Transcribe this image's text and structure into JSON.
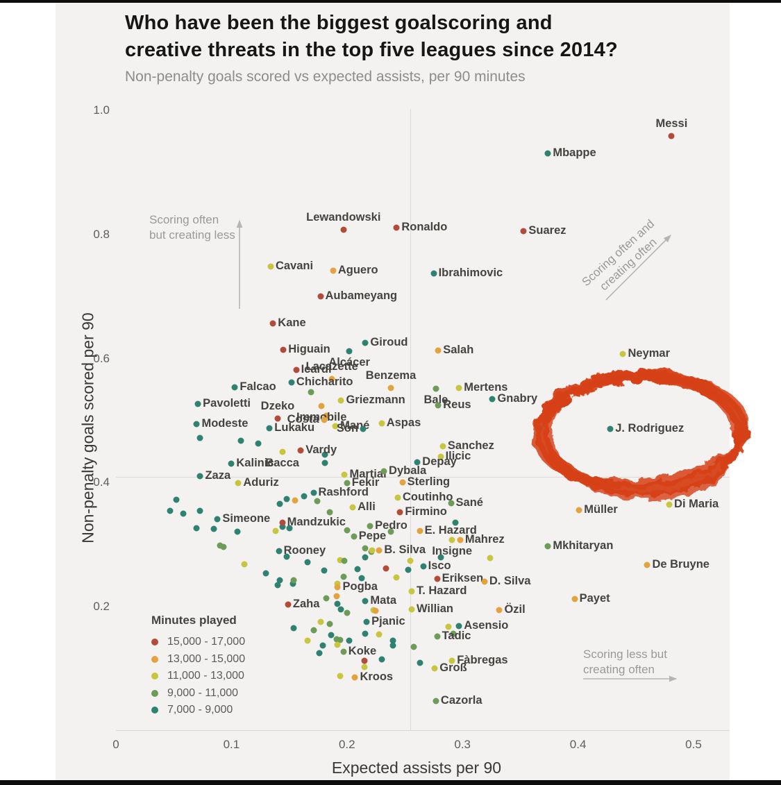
{
  "header": {
    "title_line1": "Who have been the biggest goalscoring and",
    "title_line2": "creative threats in the top five leagues since 2014?",
    "subtitle": "Non-penalty goals scored vs expected assists, per 90 minutes"
  },
  "chart_data": {
    "type": "scatter",
    "title": "Who have been the biggest goalscoring and creative threats in the top five leagues since 2014?",
    "subtitle": "Non-penalty goals scored vs expected assists, per 90 minutes",
    "xlabel": "Expected assists per 90",
    "ylabel": "Non-penalty goals scored per 90",
    "xlim": [
      0,
      0.5
    ],
    "ylim": [
      0,
      1.0
    ],
    "x_ticks": [
      "0",
      "0.1",
      "0.2",
      "0.3",
      "0.4",
      "0.5"
    ],
    "y_ticks": [
      "0.2",
      "0.4",
      "0.6",
      "0.8",
      "1.0"
    ],
    "grid": "quadrant-cross",
    "quadrant_lines": {
      "x": 0.255,
      "y": 0.408
    },
    "legend_position": "bottom-left",
    "legend": {
      "title": "Minutes played",
      "items": [
        {
          "label": "15,000 - 17,000",
          "color": "#b34b3b",
          "key": "red"
        },
        {
          "label": "13,000 - 15,000",
          "color": "#e3a33e",
          "key": "orange"
        },
        {
          "label": "11,000 - 13,000",
          "color": "#c8c63f",
          "key": "yellow"
        },
        {
          "label": "9,000  - 11,000",
          "color": "#6d9b58",
          "key": "olive"
        },
        {
          "label": "7,000   - 9,000",
          "color": "#2f8272",
          "key": "teal"
        }
      ]
    },
    "annotations": [
      {
        "id": "top-left",
        "line1": "Scoring often",
        "line2": "but creating less",
        "arrow": "up"
      },
      {
        "id": "top-right",
        "line1": "Scoring often and",
        "line2": "creating often",
        "arrow": "diagonal-up-right"
      },
      {
        "id": "bottom-right",
        "line1": "Scoring less but",
        "line2": "creating often",
        "arrow": "right"
      }
    ],
    "highlight": {
      "player": "J. Rodriguez",
      "shape": "hand-drawn-scribble-ellipse",
      "color": "#d64018",
      "cx": 0.455,
      "cy": 0.48,
      "rx": 0.087,
      "ry": 0.094
    },
    "points": [
      {
        "n": "Messi",
        "x": 0.481,
        "y": 0.957,
        "c": "red",
        "s": "above"
      },
      {
        "n": "Mbappe",
        "x": 0.374,
        "y": 0.93,
        "c": "teal"
      },
      {
        "n": "Lewandowski",
        "x": 0.197,
        "y": 0.806,
        "c": "red",
        "s": "above"
      },
      {
        "n": "Ronaldo",
        "x": 0.243,
        "y": 0.81,
        "c": "red"
      },
      {
        "n": "Suarez",
        "x": 0.353,
        "y": 0.804,
        "c": "red"
      },
      {
        "n": "Cavani",
        "x": 0.134,
        "y": 0.747,
        "c": "yellow"
      },
      {
        "n": "Aguero",
        "x": 0.188,
        "y": 0.74,
        "c": "orange"
      },
      {
        "n": "Ibrahimovic",
        "x": 0.275,
        "y": 0.736,
        "c": "teal"
      },
      {
        "n": "Aubameyang",
        "x": 0.177,
        "y": 0.699,
        "c": "red"
      },
      {
        "n": "Kane",
        "x": 0.136,
        "y": 0.656,
        "c": "red"
      },
      {
        "n": "Higuain",
        "x": 0.145,
        "y": 0.613,
        "c": "red"
      },
      {
        "n": "Giroud",
        "x": 0.216,
        "y": 0.624,
        "c": "teal"
      },
      {
        "n": "Alcácer",
        "x": 0.202,
        "y": 0.611,
        "c": "teal",
        "s": "below"
      },
      {
        "n": "Salah",
        "x": 0.279,
        "y": 0.612,
        "c": "orange"
      },
      {
        "n": "Icardi",
        "x": 0.156,
        "y": 0.58,
        "c": "red"
      },
      {
        "n": "Lacazette",
        "x": 0.187,
        "y": 0.566,
        "c": "orange",
        "s": "above"
      },
      {
        "n": "Chicharito",
        "x": 0.152,
        "y": 0.56,
        "c": "teal"
      },
      {
        "n": "Falcao",
        "x": 0.103,
        "y": 0.553,
        "c": "teal"
      },
      {
        "n": "Benzema",
        "x": 0.238,
        "y": 0.551,
        "c": "orange",
        "s": "above"
      },
      {
        "n": "Bale",
        "x": 0.277,
        "y": 0.55,
        "c": "olive",
        "s": "below"
      },
      {
        "n": "Mertens",
        "x": 0.297,
        "y": 0.551,
        "c": "yellow"
      },
      {
        "n": "Pavoletti",
        "x": 0.071,
        "y": 0.526,
        "c": "teal"
      },
      {
        "n": "Griezmann",
        "x": 0.195,
        "y": 0.531,
        "c": "yellow"
      },
      {
        "n": "Reus",
        "x": 0.279,
        "y": 0.524,
        "c": "olive"
      },
      {
        "n": "Gnabry",
        "x": 0.326,
        "y": 0.534,
        "c": "teal"
      },
      {
        "n": "Modeste",
        "x": 0.07,
        "y": 0.493,
        "c": "teal"
      },
      {
        "n": "Dzeko",
        "x": 0.14,
        "y": 0.502,
        "c": "red",
        "s": "above"
      },
      {
        "n": "Immobile",
        "x": 0.178,
        "y": 0.522,
        "c": "orange",
        "s": "below"
      },
      {
        "n": "Costa",
        "x": 0.18,
        "y": 0.5,
        "c": "orange",
        "s": "left"
      },
      {
        "n": "Mané",
        "x": 0.19,
        "y": 0.49,
        "c": "yellow"
      },
      {
        "n": "Son",
        "x": 0.214,
        "y": 0.486,
        "c": "teal",
        "s": "left"
      },
      {
        "n": "Lukaku",
        "x": 0.133,
        "y": 0.487,
        "c": "teal"
      },
      {
        "n": "Aspas",
        "x": 0.23,
        "y": 0.494,
        "c": "yellow"
      },
      {
        "n": "Vardy",
        "x": 0.16,
        "y": 0.451,
        "c": "red"
      },
      {
        "n": "Bacca",
        "x": 0.144,
        "y": 0.448,
        "c": "yellow",
        "s": "below"
      },
      {
        "n": "Kalinic",
        "x": 0.1,
        "y": 0.429,
        "c": "teal"
      },
      {
        "n": "Sanchez",
        "x": 0.283,
        "y": 0.458,
        "c": "yellow"
      },
      {
        "n": "Ilicic",
        "x": 0.281,
        "y": 0.441,
        "c": "yellow"
      },
      {
        "n": "Depay",
        "x": 0.261,
        "y": 0.432,
        "c": "teal"
      },
      {
        "n": "Zaza",
        "x": 0.073,
        "y": 0.409,
        "c": "teal"
      },
      {
        "n": "Aduriz",
        "x": 0.106,
        "y": 0.398,
        "c": "yellow"
      },
      {
        "n": "Martial",
        "x": 0.198,
        "y": 0.412,
        "c": "yellow"
      },
      {
        "n": "Dybala",
        "x": 0.232,
        "y": 0.417,
        "c": "olive"
      },
      {
        "n": "Fekir",
        "x": 0.2,
        "y": 0.398,
        "c": "olive"
      },
      {
        "n": "Sterling",
        "x": 0.248,
        "y": 0.399,
        "c": "orange"
      },
      {
        "n": "Rashford",
        "x": 0.171,
        "y": 0.382,
        "c": "teal"
      },
      {
        "n": "Coutinho",
        "x": 0.244,
        "y": 0.375,
        "c": "yellow"
      },
      {
        "n": "Sané",
        "x": 0.29,
        "y": 0.366,
        "c": "olive"
      },
      {
        "n": "Alli",
        "x": 0.205,
        "y": 0.359,
        "c": "yellow"
      },
      {
        "n": "Firmino",
        "x": 0.246,
        "y": 0.351,
        "c": "red"
      },
      {
        "n": "Simeone",
        "x": 0.088,
        "y": 0.34,
        "c": "teal"
      },
      {
        "n": "Mandzukic",
        "x": 0.144,
        "y": 0.335,
        "c": "red"
      },
      {
        "n": "Pedro",
        "x": 0.22,
        "y": 0.329,
        "c": "olive"
      },
      {
        "n": "E. Hazard",
        "x": 0.263,
        "y": 0.321,
        "c": "orange"
      },
      {
        "n": "Pepe",
        "x": 0.206,
        "y": 0.312,
        "c": "olive"
      },
      {
        "n": "Mahrez",
        "x": 0.298,
        "y": 0.306,
        "c": "orange"
      },
      {
        "n": "Insigne",
        "x": 0.291,
        "y": 0.306,
        "c": "yellow",
        "s": "below"
      },
      {
        "n": "Rooney",
        "x": 0.141,
        "y": 0.289,
        "c": "teal"
      },
      {
        "n": "B. Silva",
        "x": 0.228,
        "y": 0.29,
        "c": "orange"
      },
      {
        "n": "Mkhitaryan",
        "x": 0.374,
        "y": 0.296,
        "c": "olive"
      },
      {
        "n": "Müller",
        "x": 0.401,
        "y": 0.355,
        "c": "orange"
      },
      {
        "n": "Di Maria",
        "x": 0.479,
        "y": 0.363,
        "c": "yellow"
      },
      {
        "n": "J. Rodriguez",
        "x": 0.428,
        "y": 0.486,
        "c": "teal"
      },
      {
        "n": "Neymar",
        "x": 0.439,
        "y": 0.606,
        "c": "yellow"
      },
      {
        "n": "Isco",
        "x": 0.266,
        "y": 0.264,
        "c": "teal"
      },
      {
        "n": "De Bruyne",
        "x": 0.46,
        "y": 0.266,
        "c": "orange"
      },
      {
        "n": "Eriksen",
        "x": 0.278,
        "y": 0.244,
        "c": "red"
      },
      {
        "n": "D. Silva",
        "x": 0.319,
        "y": 0.239,
        "c": "orange"
      },
      {
        "n": "Pogba",
        "x": 0.192,
        "y": 0.23,
        "c": "orange"
      },
      {
        "n": "Mata",
        "x": 0.216,
        "y": 0.208,
        "c": "teal"
      },
      {
        "n": "T. Hazard",
        "x": 0.256,
        "y": 0.224,
        "c": "yellow"
      },
      {
        "n": "Payet",
        "x": 0.397,
        "y": 0.211,
        "c": "orange"
      },
      {
        "n": "Zaha",
        "x": 0.149,
        "y": 0.203,
        "c": "red"
      },
      {
        "n": "Willian",
        "x": 0.256,
        "y": 0.195,
        "c": "yellow"
      },
      {
        "n": "Özil",
        "x": 0.332,
        "y": 0.194,
        "c": "orange"
      },
      {
        "n": "Pjanic",
        "x": 0.217,
        "y": 0.174,
        "c": "teal"
      },
      {
        "n": "Asensio",
        "x": 0.297,
        "y": 0.168,
        "c": "teal"
      },
      {
        "n": "Tadic",
        "x": 0.278,
        "y": 0.151,
        "c": "olive"
      },
      {
        "n": "Koke",
        "x": 0.197,
        "y": 0.126,
        "c": "olive"
      },
      {
        "n": "Fàbregas",
        "x": 0.291,
        "y": 0.112,
        "c": "yellow"
      },
      {
        "n": "Groß",
        "x": 0.276,
        "y": 0.1,
        "c": "yellow"
      },
      {
        "n": "Kroos",
        "x": 0.207,
        "y": 0.085,
        "c": "orange"
      },
      {
        "n": "Cazorla",
        "x": 0.277,
        "y": 0.047,
        "c": "olive"
      }
    ],
    "unlabeled_points": [
      {
        "x": 0.169,
        "y": 0.545,
        "c": "olive"
      },
      {
        "x": 0.182,
        "y": 0.507,
        "c": "orange"
      },
      {
        "x": 0.073,
        "y": 0.471,
        "c": "teal"
      },
      {
        "x": 0.108,
        "y": 0.467,
        "c": "teal"
      },
      {
        "x": 0.123,
        "y": 0.462,
        "c": "teal"
      },
      {
        "x": 0.181,
        "y": 0.444,
        "c": "teal"
      },
      {
        "x": 0.181,
        "y": 0.431,
        "c": "teal"
      },
      {
        "x": 0.142,
        "y": 0.365,
        "c": "teal"
      },
      {
        "x": 0.148,
        "y": 0.372,
        "c": "teal"
      },
      {
        "x": 0.155,
        "y": 0.37,
        "c": "orange"
      },
      {
        "x": 0.163,
        "y": 0.377,
        "c": "teal"
      },
      {
        "x": 0.174,
        "y": 0.369,
        "c": "olive"
      },
      {
        "x": 0.185,
        "y": 0.351,
        "c": "olive"
      },
      {
        "x": 0.144,
        "y": 0.328,
        "c": "teal"
      },
      {
        "x": 0.15,
        "y": 0.326,
        "c": "teal"
      },
      {
        "x": 0.2,
        "y": 0.322,
        "c": "olive"
      },
      {
        "x": 0.238,
        "y": 0.32,
        "c": "olive"
      },
      {
        "x": 0.294,
        "y": 0.334,
        "c": "teal"
      },
      {
        "x": 0.216,
        "y": 0.293,
        "c": "olive"
      },
      {
        "x": 0.221,
        "y": 0.288,
        "c": "olive"
      },
      {
        "x": 0.216,
        "y": 0.278,
        "c": "teal"
      },
      {
        "x": 0.222,
        "y": 0.29,
        "c": "yellow"
      },
      {
        "x": 0.209,
        "y": 0.259,
        "c": "teal"
      },
      {
        "x": 0.234,
        "y": 0.261,
        "c": "red"
      },
      {
        "x": 0.253,
        "y": 0.258,
        "c": "teal"
      },
      {
        "x": 0.255,
        "y": 0.273,
        "c": "yellow"
      },
      {
        "x": 0.281,
        "y": 0.278,
        "c": "teal"
      },
      {
        "x": 0.324,
        "y": 0.277,
        "c": "yellow"
      },
      {
        "x": 0.213,
        "y": 0.245,
        "c": "teal"
      },
      {
        "x": 0.243,
        "y": 0.246,
        "c": "yellow"
      },
      {
        "x": 0.197,
        "y": 0.247,
        "c": "olive"
      },
      {
        "x": 0.166,
        "y": 0.271,
        "c": "teal"
      },
      {
        "x": 0.148,
        "y": 0.28,
        "c": "teal"
      },
      {
        "x": 0.194,
        "y": 0.274,
        "c": "yellow"
      },
      {
        "x": 0.198,
        "y": 0.273,
        "c": "olive"
      },
      {
        "x": 0.18,
        "y": 0.257,
        "c": "teal"
      },
      {
        "x": 0.142,
        "y": 0.242,
        "c": "teal"
      },
      {
        "x": 0.153,
        "y": 0.236,
        "c": "teal"
      },
      {
        "x": 0.192,
        "y": 0.236,
        "c": "yellow"
      },
      {
        "x": 0.191,
        "y": 0.216,
        "c": "orange"
      },
      {
        "x": 0.182,
        "y": 0.212,
        "c": "olive"
      },
      {
        "x": 0.192,
        "y": 0.204,
        "c": "teal"
      },
      {
        "x": 0.195,
        "y": 0.195,
        "c": "teal"
      },
      {
        "x": 0.2,
        "y": 0.189,
        "c": "olive"
      },
      {
        "x": 0.223,
        "y": 0.194,
        "c": "yellow"
      },
      {
        "x": 0.225,
        "y": 0.192,
        "c": "orange"
      },
      {
        "x": 0.202,
        "y": 0.144,
        "c": "teal"
      },
      {
        "x": 0.185,
        "y": 0.171,
        "c": "olive"
      },
      {
        "x": 0.177,
        "y": 0.175,
        "c": "yellow"
      },
      {
        "x": 0.154,
        "y": 0.164,
        "c": "teal"
      },
      {
        "x": 0.171,
        "y": 0.161,
        "c": "olive"
      },
      {
        "x": 0.186,
        "y": 0.153,
        "c": "teal"
      },
      {
        "x": 0.194,
        "y": 0.145,
        "c": "olive"
      },
      {
        "x": 0.216,
        "y": 0.155,
        "c": "teal"
      },
      {
        "x": 0.228,
        "y": 0.154,
        "c": "yellow"
      },
      {
        "x": 0.24,
        "y": 0.136,
        "c": "teal"
      },
      {
        "x": 0.166,
        "y": 0.144,
        "c": "yellow"
      },
      {
        "x": 0.258,
        "y": 0.134,
        "c": "olive"
      },
      {
        "x": 0.263,
        "y": 0.108,
        "c": "teal"
      },
      {
        "x": 0.288,
        "y": 0.167,
        "c": "yellow"
      },
      {
        "x": 0.292,
        "y": 0.156,
        "c": "olive"
      },
      {
        "x": 0.179,
        "y": 0.136,
        "c": "teal"
      },
      {
        "x": 0.191,
        "y": 0.147,
        "c": "olive"
      },
      {
        "x": 0.192,
        "y": 0.138,
        "c": "yellow"
      },
      {
        "x": 0.176,
        "y": 0.124,
        "c": "teal"
      },
      {
        "x": 0.23,
        "y": 0.114,
        "c": "teal"
      },
      {
        "x": 0.215,
        "y": 0.112,
        "c": "red"
      },
      {
        "x": 0.215,
        "y": 0.102,
        "c": "yellow"
      },
      {
        "x": 0.194,
        "y": 0.087,
        "c": "yellow"
      },
      {
        "x": 0.24,
        "y": 0.144,
        "c": "teal"
      },
      {
        "x": 0.052,
        "y": 0.371,
        "c": "teal"
      },
      {
        "x": 0.047,
        "y": 0.354,
        "c": "teal"
      },
      {
        "x": 0.058,
        "y": 0.349,
        "c": "teal"
      },
      {
        "x": 0.073,
        "y": 0.353,
        "c": "teal"
      },
      {
        "x": 0.07,
        "y": 0.325,
        "c": "teal"
      },
      {
        "x": 0.085,
        "y": 0.324,
        "c": "teal"
      },
      {
        "x": 0.105,
        "y": 0.32,
        "c": "teal"
      },
      {
        "x": 0.09,
        "y": 0.298,
        "c": "olive"
      },
      {
        "x": 0.093,
        "y": 0.295,
        "c": "olive"
      },
      {
        "x": 0.111,
        "y": 0.267,
        "c": "yellow"
      },
      {
        "x": 0.13,
        "y": 0.253,
        "c": "teal"
      },
      {
        "x": 0.14,
        "y": 0.234,
        "c": "teal"
      },
      {
        "x": 0.154,
        "y": 0.242,
        "c": "olive"
      },
      {
        "x": 0.138,
        "y": 0.321,
        "c": "yellow"
      }
    ]
  }
}
